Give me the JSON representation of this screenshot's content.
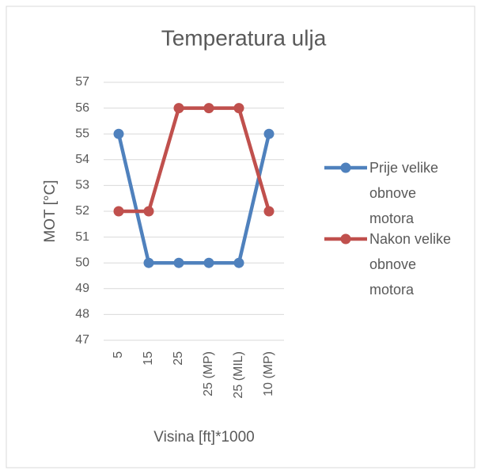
{
  "chart_data": {
    "type": "line",
    "title": "Temperatura ulja",
    "x_label": "Visina [ft]*1000",
    "y_label": "MOT [°C]",
    "categories": [
      "5",
      "15",
      "25",
      "25 (MP)",
      "25 (MIL)",
      "10 (MP)"
    ],
    "series": [
      {
        "name": "Prije velike obnove motora",
        "color": "#4f81bd",
        "values": [
          55,
          50,
          50,
          50,
          50,
          55
        ]
      },
      {
        "name": "Nakon velike obnove motora",
        "color": "#c0504d",
        "values": [
          52,
          52,
          56,
          56,
          56,
          52
        ]
      }
    ],
    "ylim": [
      47,
      57
    ],
    "yticks": [
      47,
      48,
      49,
      50,
      51,
      52,
      53,
      54,
      55,
      56,
      57
    ],
    "grid": true,
    "legend": "right"
  }
}
